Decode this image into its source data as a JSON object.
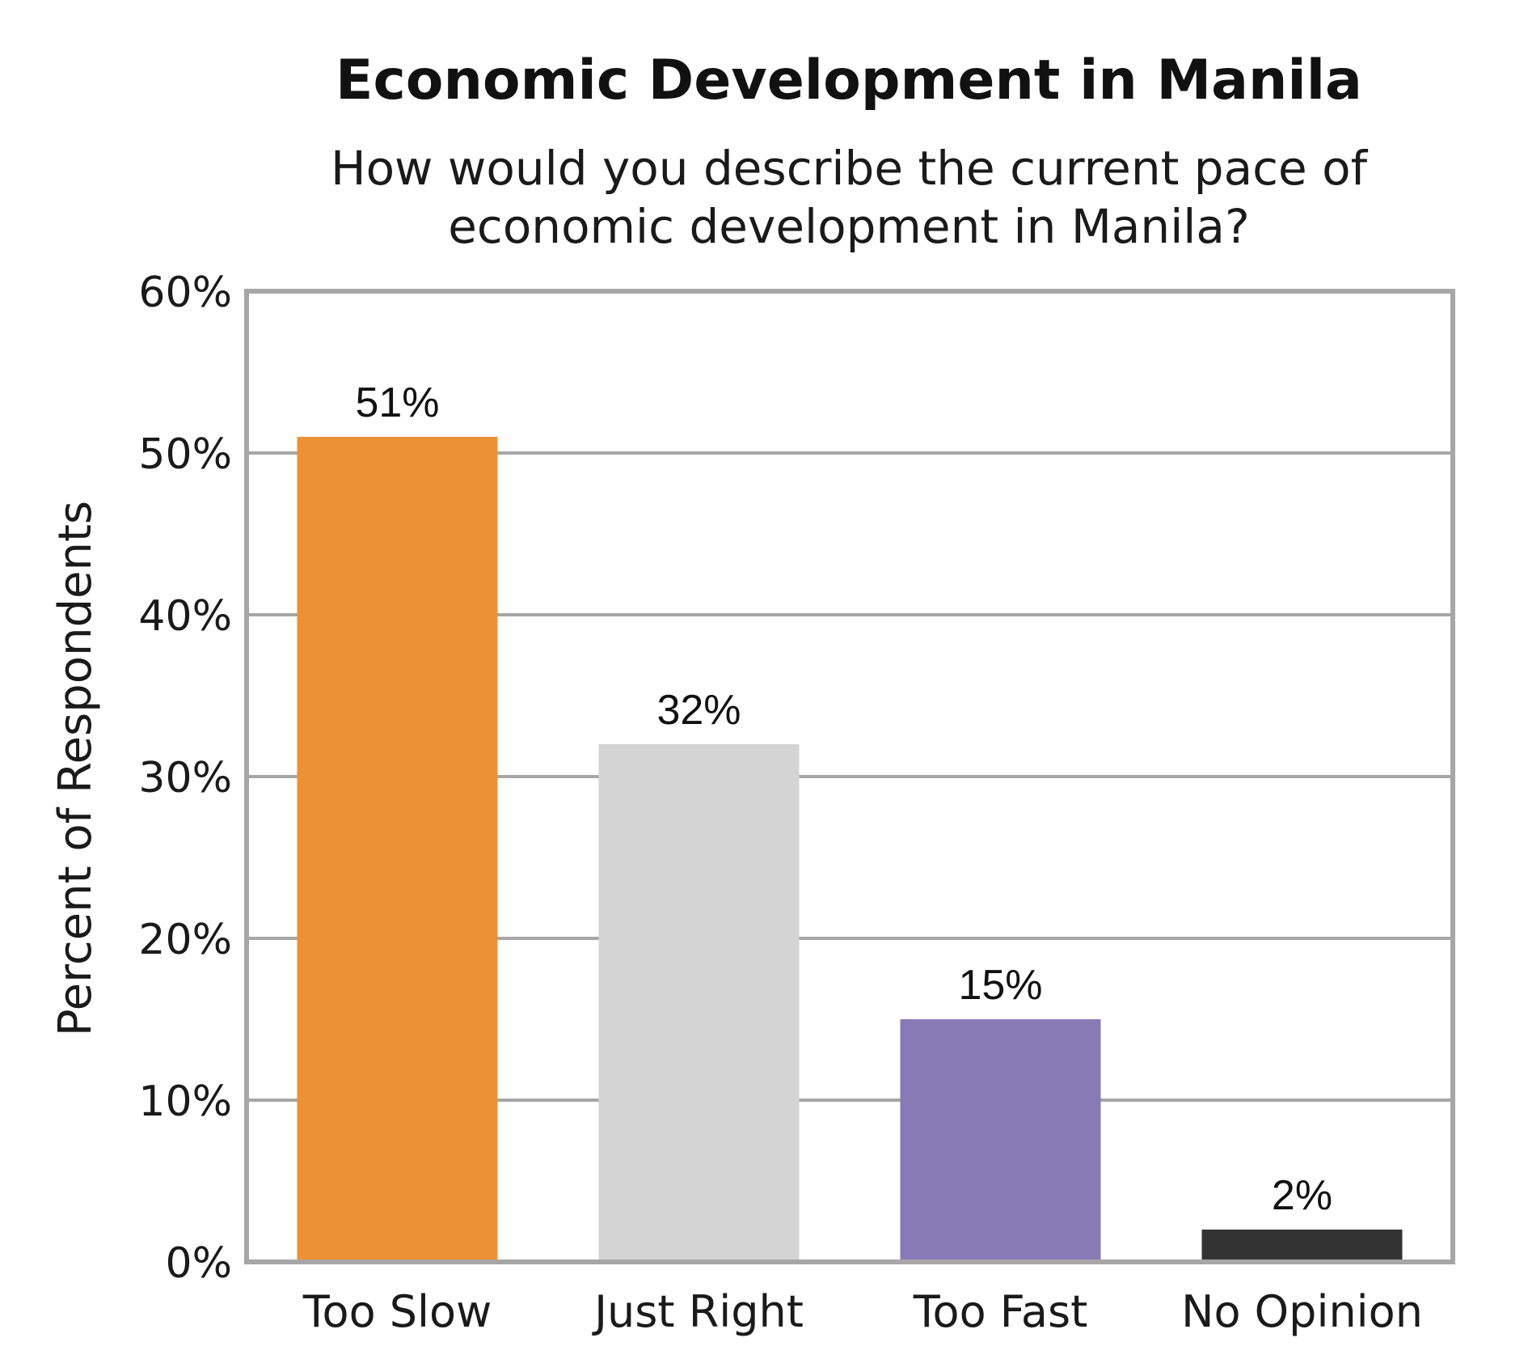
{
  "chart_data": {
    "type": "bar",
    "title": "Economic Development in Manila",
    "subtitle_lines": [
      "How would you describe the current pace of",
      "economic development in Manila?"
    ],
    "xlabel": "",
    "ylabel": "Percent of Respondents",
    "categories": [
      "Too Slow",
      "Just Right",
      "Too Fast",
      "No Opinion"
    ],
    "values": [
      51,
      32,
      15,
      2
    ],
    "value_labels": [
      "51%",
      "32%",
      "15%",
      "2%"
    ],
    "bar_colors": [
      "#ec9234",
      "#d4d4d4",
      "#887bb5",
      "#333333"
    ],
    "ylim": [
      0,
      60
    ],
    "yticks": [
      0,
      10,
      20,
      30,
      40,
      50,
      60
    ],
    "ytick_labels": [
      "0%",
      "10%",
      "20%",
      "30%",
      "40%",
      "50%",
      "60%"
    ],
    "grid": true,
    "legend": "none",
    "frame_color": "#a6a6a6",
    "grid_color": "#a6a6a6"
  }
}
